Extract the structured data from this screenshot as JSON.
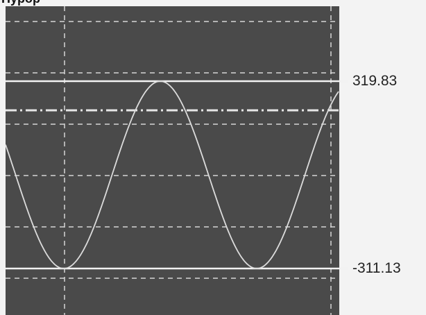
{
  "top_strip_text": "Hypop",
  "upper_marker": {
    "label": "319.83",
    "value": 319.83
  },
  "lower_marker": {
    "label": "-311.13",
    "value": -311.13
  },
  "waveform": {
    "type": "sine",
    "cycles_visible": 1.75,
    "clipped_peaks": true
  },
  "colors": {
    "display_background": "#4a4a4a",
    "grid": "#d6d6d6",
    "trace": "#dcdcdc",
    "marker_line": "#f2f2f2",
    "page_background": "#f3f3f3"
  }
}
